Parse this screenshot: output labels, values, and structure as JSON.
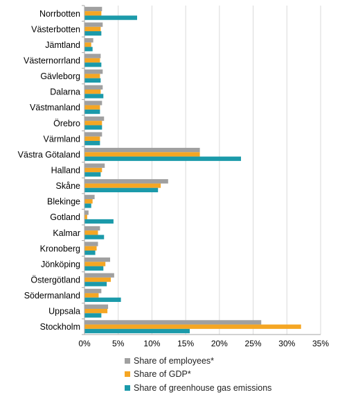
{
  "colors": {
    "employees": "#A0A0A0",
    "gdp": "#F5A623",
    "emissions": "#1B9AAA",
    "grid": "#D9D9D9",
    "axis": "#A6A6A6"
  },
  "legend": [
    {
      "label": "Share of employees*",
      "key": "employees"
    },
    {
      "label": "Share of GDP*",
      "key": "gdp"
    },
    {
      "label": "Share of greenhouse gas emissions",
      "key": "emissions"
    }
  ],
  "chart_data": {
    "type": "bar",
    "orientation": "horizontal",
    "title": "",
    "xlabel": "",
    "ylabel": "",
    "xlim": [
      0,
      35
    ],
    "x_ticks": [
      "0%",
      "5%",
      "10%",
      "15%",
      "20%",
      "25%",
      "30%",
      "35%"
    ],
    "grid": "vertical",
    "legend_position": "bottom",
    "categories": [
      "Norrbotten",
      "Västerbotten",
      "Jämtland",
      "Västernorrland",
      "Gävleborg",
      "Dalarna",
      "Västmanland",
      "Örebro",
      "Värmland",
      "Västra Götaland",
      "Halland",
      "Skåne",
      "Blekinge",
      "Gotland",
      "Kalmar",
      "Kronoberg",
      "Jönköping",
      "Östergötland",
      "Södermanland",
      "Uppsala",
      "Stockholm"
    ],
    "series": [
      {
        "name": "Share of employees*",
        "key": "employees",
        "values": [
          2.6,
          2.7,
          1.3,
          2.4,
          2.7,
          2.7,
          2.6,
          2.9,
          2.6,
          17.1,
          3.0,
          12.4,
          1.5,
          0.6,
          2.3,
          2.0,
          3.8,
          4.4,
          2.5,
          3.5,
          26.2
        ]
      },
      {
        "name": "Share of GDP*",
        "key": "gdp",
        "values": [
          2.5,
          2.4,
          1.0,
          2.3,
          2.3,
          2.4,
          2.3,
          2.6,
          2.3,
          17.1,
          2.6,
          11.3,
          1.2,
          0.4,
          2.0,
          1.8,
          3.1,
          3.9,
          2.1,
          3.4,
          32.1
        ]
      },
      {
        "name": "Share of greenhouse gas emissions",
        "key": "emissions",
        "values": [
          7.8,
          2.5,
          1.2,
          2.5,
          2.4,
          2.8,
          2.3,
          2.6,
          2.3,
          23.2,
          2.4,
          10.9,
          1.0,
          4.3,
          2.9,
          1.6,
          2.8,
          3.3,
          5.4,
          2.5,
          15.6
        ]
      }
    ]
  }
}
